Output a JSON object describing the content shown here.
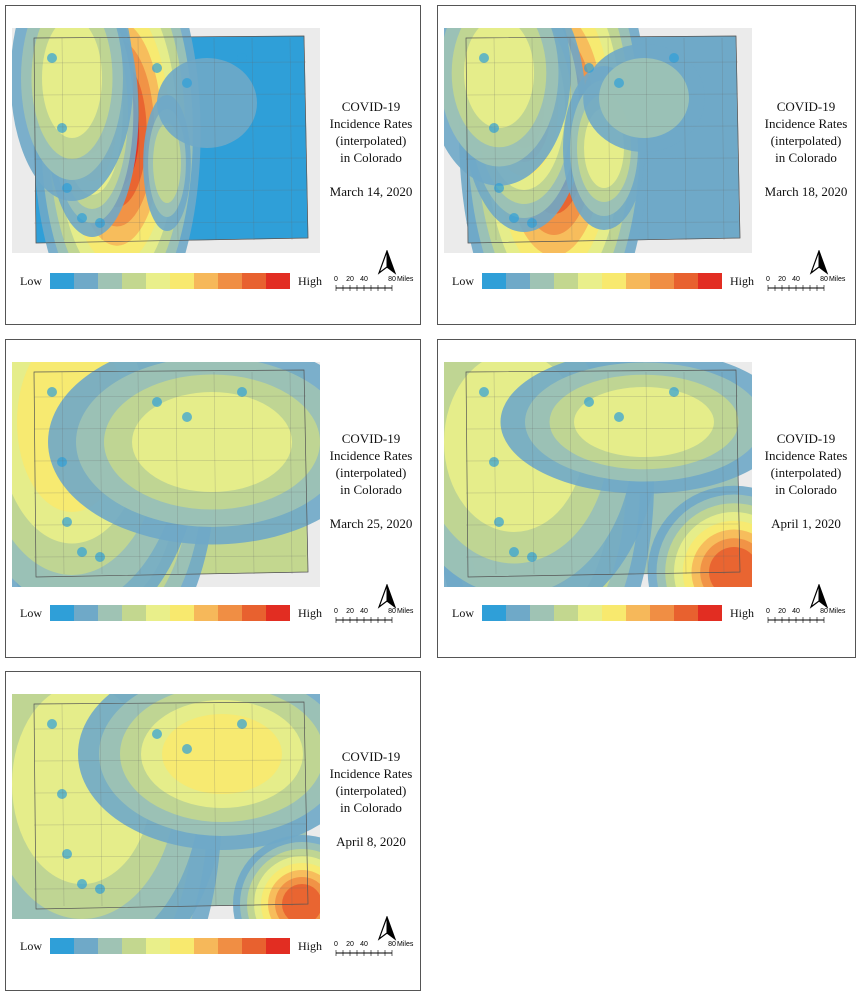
{
  "panels": [
    {
      "title": [
        "COVID-19",
        "Incidence Rates",
        "(interpolated)",
        "in Colorado"
      ],
      "date": "March 14, 2020"
    },
    {
      "title": [
        "COVID-19",
        "Incidence Rates",
        "(interpolated)",
        "in Colorado"
      ],
      "date": "March 18, 2020"
    },
    {
      "title": [
        "COVID-19",
        "Incidence Rates",
        "(interpolated)",
        "in Colorado"
      ],
      "date": "March 25, 2020"
    },
    {
      "title": [
        "COVID-19",
        "Incidence Rates",
        "(interpolated)",
        "in Colorado"
      ],
      "date": "April 1, 2020"
    },
    {
      "title": [
        "COVID-19",
        "Incidence Rates",
        "(interpolated)",
        "in Colorado"
      ],
      "date": "April 8, 2020"
    }
  ],
  "legend": {
    "low_label": "Low",
    "high_label": "High",
    "colors": [
      "#2f9fd8",
      "#6fa9c8",
      "#9fc3b4",
      "#c3d78f",
      "#e9ef8a",
      "#f8e96e",
      "#f6b85a",
      "#f08e44",
      "#e8612f",
      "#e22d22"
    ]
  },
  "scale_bar": {
    "ticks": [
      "0",
      "20",
      "40",
      "80"
    ],
    "unit": "Miles"
  }
}
